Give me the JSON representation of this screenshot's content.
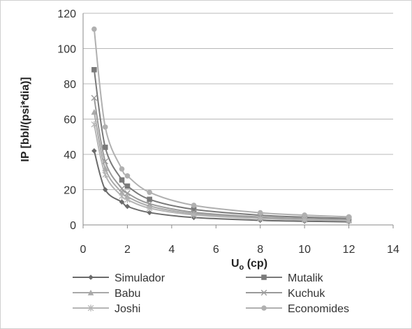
{
  "chart_data": {
    "type": "line",
    "title": "",
    "xlabel": "Uo (cp)",
    "xlabel_main": "U",
    "xlabel_sub": "o",
    "xlabel_rest": " (cp)",
    "ylabel": "IP [bbl/(psi*dia)]",
    "xlim": [
      0,
      14
    ],
    "ylim": [
      0,
      120
    ],
    "xticks": [
      "0",
      "2",
      "4",
      "6",
      "8",
      "10",
      "12",
      "14"
    ],
    "yticks": [
      "0",
      "20",
      "40",
      "60",
      "80",
      "100",
      "120"
    ],
    "grid": "horizontal",
    "legend_position": "bottom",
    "x": [
      0.5,
      1,
      1.75,
      2,
      3,
      5,
      8,
      10,
      12
    ],
    "series": [
      {
        "name": "Simulador",
        "marker": "diamond",
        "color": "#6b6b6b",
        "values": [
          42,
          20,
          13,
          10.5,
          7,
          4.2,
          2.6,
          2.1,
          1.75
        ]
      },
      {
        "name": "Mutalik",
        "marker": "square",
        "color": "#7a7a7a",
        "values": [
          88,
          44,
          25.5,
          22,
          14.5,
          8.8,
          5.5,
          4.4,
          3.7
        ]
      },
      {
        "name": "Babu",
        "marker": "triangle",
        "color": "#a9a9a9",
        "values": [
          64,
          32,
          18.3,
          16,
          10.7,
          6.4,
          4.0,
          3.2,
          2.7
        ]
      },
      {
        "name": "Kuchuk",
        "marker": "x",
        "color": "#9a9a9a",
        "values": [
          72,
          36,
          20.6,
          18,
          12,
          7.2,
          4.5,
          3.6,
          3.0
        ]
      },
      {
        "name": "Joshi",
        "marker": "star",
        "color": "#b5b5b5",
        "values": [
          57,
          28.5,
          16.3,
          14.3,
          9.5,
          5.7,
          3.6,
          2.9,
          2.4
        ]
      },
      {
        "name": "Economides",
        "marker": "circle",
        "color": "#b0b0b0",
        "values": [
          111,
          55.5,
          31.7,
          27.8,
          18.5,
          11.1,
          6.9,
          5.55,
          4.6
        ]
      }
    ]
  }
}
